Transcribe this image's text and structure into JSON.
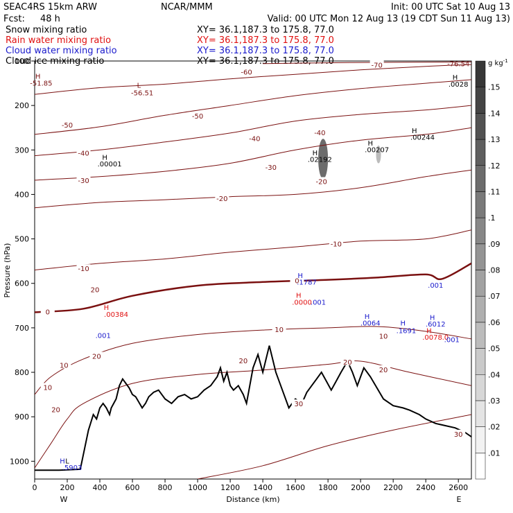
{
  "header": {
    "model": "SEAC4RS 15km ARW",
    "org": "NCAR/MMM",
    "init": "Init: 00 UTC Sat 10 Aug 13",
    "fcst_label": "Fcst:",
    "fcst_value": "48 h",
    "valid": "Valid: 00 UTC Mon 12 Aug 13 (19 CDT Sun 11 Aug 13)",
    "fields": [
      {
        "name": "Snow mixing ratio",
        "color": "#000000",
        "xy": "XY=  36.1,187.3 to 175.8, 77.0"
      },
      {
        "name": "Rain water mixing ratio",
        "color": "#e01010",
        "xy": "XY=  36.1,187.3 to 175.8, 77.0"
      },
      {
        "name": "Cloud water mixing ratio",
        "color": "#1a1acc",
        "xy": "XY=  36.1,187.3 to 175.8, 77.0"
      },
      {
        "name": "Cloud ice mixing ratio",
        "color": "#000000",
        "xy": "XY=  36.1,187.3 to 175.8, 77.0"
      }
    ]
  },
  "chart_data": {
    "type": "contour-cross-section",
    "xlabel": "Distance (km)",
    "ylabel": "Pressure (hPa)",
    "xlim": [
      0,
      2680
    ],
    "ylim": [
      1040,
      100
    ],
    "x_ticks": [
      0,
      200,
      400,
      600,
      800,
      1000,
      1200,
      1400,
      1600,
      1800,
      2000,
      2200,
      2400,
      2600
    ],
    "y_ticks": [
      100,
      200,
      300,
      400,
      500,
      600,
      700,
      800,
      900,
      1000
    ],
    "left_end_label": "W",
    "right_end_label": "E",
    "colors": {
      "temperature": "#7a1010",
      "zero_isotherm": "#7a1010",
      "terrain": "#000000",
      "cloud_water": "#1a1acc",
      "rain_water": "#e01010"
    },
    "temperature_isotherms_C": [
      {
        "value": 30,
        "points": [
          [
            1000,
            1040
          ],
          [
            1400,
            1010
          ],
          [
            1800,
            965
          ],
          [
            2200,
            930
          ],
          [
            2680,
            895
          ]
        ]
      },
      {
        "value": 20,
        "points": [
          [
            0,
            1015
          ],
          [
            100,
            960
          ],
          [
            200,
            905
          ],
          [
            300,
            870
          ],
          [
            600,
            825
          ],
          [
            1000,
            805
          ],
          [
            1400,
            795
          ],
          [
            1800,
            782
          ],
          [
            2000,
            775
          ],
          [
            2300,
            800
          ],
          [
            2680,
            830
          ]
        ]
      },
      {
        "value": 10,
        "points": [
          [
            0,
            850
          ],
          [
            100,
            810
          ],
          [
            300,
            770
          ],
          [
            600,
            735
          ],
          [
            1000,
            715
          ],
          [
            1400,
            705
          ],
          [
            1800,
            700
          ],
          [
            2100,
            697
          ],
          [
            2400,
            708
          ],
          [
            2680,
            725
          ]
        ]
      },
      {
        "value": 0,
        "points": [
          [
            0,
            665
          ],
          [
            300,
            657
          ],
          [
            600,
            628
          ],
          [
            1000,
            605
          ],
          [
            1400,
            597
          ],
          [
            1800,
            592
          ],
          [
            2100,
            587
          ],
          [
            2400,
            580
          ],
          [
            2500,
            590
          ],
          [
            2680,
            555
          ]
        ]
      },
      {
        "value": -10,
        "points": [
          [
            0,
            570
          ],
          [
            400,
            555
          ],
          [
            800,
            545
          ],
          [
            1200,
            530
          ],
          [
            1600,
            518
          ],
          [
            2000,
            505
          ],
          [
            2400,
            500
          ],
          [
            2680,
            480
          ]
        ]
      },
      {
        "value": -20,
        "points": [
          [
            0,
            430
          ],
          [
            400,
            418
          ],
          [
            800,
            412
          ],
          [
            1200,
            405
          ],
          [
            1600,
            400
          ],
          [
            2000,
            385
          ],
          [
            2400,
            360
          ],
          [
            2680,
            345
          ]
        ]
      },
      {
        "value": -30,
        "points": [
          [
            0,
            368
          ],
          [
            400,
            360
          ],
          [
            800,
            348
          ],
          [
            1200,
            330
          ],
          [
            1600,
            300
          ],
          [
            2000,
            278
          ],
          [
            2400,
            265
          ],
          [
            2680,
            250
          ]
        ]
      },
      {
        "value": -40,
        "points": [
          [
            0,
            313
          ],
          [
            400,
            300
          ],
          [
            800,
            282
          ],
          [
            1200,
            262
          ],
          [
            1600,
            235
          ],
          [
            2000,
            220
          ],
          [
            2400,
            210
          ],
          [
            2680,
            200
          ]
        ]
      },
      {
        "value": -50,
        "points": [
          [
            0,
            265
          ],
          [
            400,
            248
          ],
          [
            800,
            222
          ],
          [
            1200,
            200
          ],
          [
            1600,
            178
          ],
          [
            2000,
            162
          ],
          [
            2400,
            150
          ],
          [
            2680,
            142
          ]
        ]
      },
      {
        "value": -60,
        "points": [
          [
            0,
            175
          ],
          [
            400,
            160
          ],
          [
            800,
            152
          ],
          [
            1200,
            140
          ],
          [
            1600,
            130
          ],
          [
            2000,
            120
          ],
          [
            2400,
            112
          ],
          [
            2680,
            108
          ]
        ]
      },
      {
        "value": -70,
        "points": [
          [
            1400,
            106
          ],
          [
            1800,
            104
          ],
          [
            2200,
            103
          ],
          [
            2680,
            102
          ]
        ]
      }
    ],
    "contour_labels": [
      {
        "text": "-70",
        "x": 2100,
        "y": 110
      },
      {
        "text": "-60",
        "x": 1300,
        "y": 126
      },
      {
        "text": "-50",
        "x": 200,
        "y": 245
      },
      {
        "text": "-50",
        "x": 1000,
        "y": 225
      },
      {
        "text": "-40",
        "x": 300,
        "y": 308
      },
      {
        "text": "-40",
        "x": 1350,
        "y": 275
      },
      {
        "text": "-40",
        "x": 1750,
        "y": 262
      },
      {
        "text": "-30",
        "x": 300,
        "y": 370
      },
      {
        "text": "-30",
        "x": 1450,
        "y": 340
      },
      {
        "text": "-20",
        "x": 1150,
        "y": 410
      },
      {
        "text": "-20",
        "x": 1760,
        "y": 372
      },
      {
        "text": "-10",
        "x": 300,
        "y": 568
      },
      {
        "text": "-10",
        "x": 1850,
        "y": 512
      },
      {
        "text": "0",
        "x": 80,
        "y": 665
      },
      {
        "text": "0",
        "x": 1610,
        "y": 595
      },
      {
        "text": "10",
        "x": 180,
        "y": 785
      },
      {
        "text": "10",
        "x": 80,
        "y": 835
      },
      {
        "text": "10",
        "x": 1500,
        "y": 705
      },
      {
        "text": "10",
        "x": 2140,
        "y": 720
      },
      {
        "text": "20",
        "x": 380,
        "y": 765
      },
      {
        "text": "20",
        "x": 1280,
        "y": 775
      },
      {
        "text": "20",
        "x": 1920,
        "y": 778
      },
      {
        "text": "20",
        "x": 2140,
        "y": 795
      },
      {
        "text": "20",
        "x": 370,
        "y": 615
      },
      {
        "text": "20",
        "x": 130,
        "y": 885
      },
      {
        "text": "30",
        "x": 1620,
        "y": 872
      },
      {
        "text": "30",
        "x": 2600,
        "y": 940
      }
    ],
    "extrema": [
      {
        "text": "H",
        "x": 20,
        "y": 140,
        "color": "#7a1010"
      },
      {
        "text": "-51.85",
        "x": 40,
        "y": 155,
        "color": "#7a1010"
      },
      {
        "text": "L",
        "x": 640,
        "y": 160,
        "color": "#7a1010"
      },
      {
        "text": "-56.51",
        "x": 660,
        "y": 177,
        "color": "#7a1010"
      },
      {
        "text": "-76.54",
        "x": 2600,
        "y": 112,
        "color": "#7a1010"
      },
      {
        "text": "H",
        "x": 2580,
        "y": 142,
        "color": "#000000"
      },
      {
        "text": ".0028",
        "x": 2600,
        "y": 158,
        "color": "#000000"
      },
      {
        "text": "H",
        "x": 2330,
        "y": 262,
        "color": "#000000"
      },
      {
        "text": ".00244",
        "x": 2380,
        "y": 277,
        "color": "#000000"
      },
      {
        "text": "H",
        "x": 2060,
        "y": 290,
        "color": "#000000"
      },
      {
        "text": ".00207",
        "x": 2100,
        "y": 305,
        "color": "#000000"
      },
      {
        "text": "H",
        "x": 1720,
        "y": 312,
        "color": "#000000"
      },
      {
        "text": ".02192",
        "x": 1750,
        "y": 327,
        "color": "#000000"
      },
      {
        "text": "H",
        "x": 430,
        "y": 322,
        "color": "#000000"
      },
      {
        "text": ".00001",
        "x": 460,
        "y": 337,
        "color": "#000000"
      },
      {
        "text": "H",
        "x": 1630,
        "y": 588,
        "color": "#1a1acc"
      },
      {
        "text": ".1787",
        "x": 1670,
        "y": 603,
        "color": "#1a1acc"
      },
      {
        "text": "H",
        "x": 1620,
        "y": 632,
        "color": "#e01010"
      },
      {
        "text": ".0000",
        "x": 1640,
        "y": 648,
        "color": "#e01010"
      },
      {
        "text": ".001",
        "x": 1740,
        "y": 648,
        "color": "#1a1acc"
      },
      {
        "text": "H",
        "x": 440,
        "y": 660,
        "color": "#e01010"
      },
      {
        "text": ".00384",
        "x": 500,
        "y": 675,
        "color": "#e01010"
      },
      {
        "text": ".001",
        "x": 420,
        "y": 723,
        "color": "#1a1acc"
      },
      {
        "text": "H",
        "x": 2040,
        "y": 680,
        "color": "#1a1acc"
      },
      {
        "text": ".0064",
        "x": 2060,
        "y": 695,
        "color": "#1a1acc"
      },
      {
        "text": "H",
        "x": 2260,
        "y": 695,
        "color": "#1a1acc"
      },
      {
        "text": ".1691",
        "x": 2280,
        "y": 712,
        "color": "#1a1acc"
      },
      {
        "text": ".001",
        "x": 2460,
        "y": 610,
        "color": "#1a1acc"
      },
      {
        "text": "H",
        "x": 2440,
        "y": 682,
        "color": "#1a1acc"
      },
      {
        "text": ".6012",
        "x": 2460,
        "y": 697,
        "color": "#1a1acc"
      },
      {
        "text": "H",
        "x": 2420,
        "y": 712,
        "color": "#e01010"
      },
      {
        "text": ".0078",
        "x": 2440,
        "y": 727,
        "color": "#e01010"
      },
      {
        "text": ".0",
        "x": 2520,
        "y": 727,
        "color": "#e01010"
      },
      {
        "text": ".001",
        "x": 2560,
        "y": 732,
        "color": "#1a1acc"
      },
      {
        "text": "H",
        "x": 170,
        "y": 1005,
        "color": "#1a1acc"
      },
      {
        "text": "L",
        "x": 200,
        "y": 1005,
        "color": "#000000"
      },
      {
        "text": ".5903",
        "x": 230,
        "y": 1020,
        "color": "#1a1acc"
      }
    ],
    "terrain_surface": [
      [
        0,
        1020
      ],
      [
        150,
        1020
      ],
      [
        280,
        1018
      ],
      [
        330,
        930
      ],
      [
        360,
        895
      ],
      [
        380,
        905
      ],
      [
        400,
        880
      ],
      [
        420,
        870
      ],
      [
        440,
        880
      ],
      [
        460,
        895
      ],
      [
        470,
        880
      ],
      [
        500,
        860
      ],
      [
        520,
        830
      ],
      [
        540,
        815
      ],
      [
        560,
        825
      ],
      [
        580,
        835
      ],
      [
        600,
        850
      ],
      [
        620,
        855
      ],
      [
        660,
        880
      ],
      [
        680,
        870
      ],
      [
        700,
        855
      ],
      [
        730,
        845
      ],
      [
        760,
        840
      ],
      [
        800,
        860
      ],
      [
        840,
        870
      ],
      [
        880,
        855
      ],
      [
        920,
        850
      ],
      [
        960,
        860
      ],
      [
        1000,
        855
      ],
      [
        1040,
        840
      ],
      [
        1080,
        830
      ],
      [
        1120,
        810
      ],
      [
        1140,
        790
      ],
      [
        1160,
        820
      ],
      [
        1180,
        800
      ],
      [
        1200,
        830
      ],
      [
        1220,
        840
      ],
      [
        1250,
        830
      ],
      [
        1280,
        850
      ],
      [
        1300,
        870
      ],
      [
        1320,
        830
      ],
      [
        1340,
        790
      ],
      [
        1370,
        760
      ],
      [
        1400,
        800
      ],
      [
        1420,
        770
      ],
      [
        1440,
        740
      ],
      [
        1460,
        770
      ],
      [
        1480,
        800
      ],
      [
        1520,
        840
      ],
      [
        1560,
        880
      ],
      [
        1600,
        860
      ],
      [
        1640,
        870
      ],
      [
        1670,
        845
      ],
      [
        1700,
        830
      ],
      [
        1730,
        815
      ],
      [
        1760,
        800
      ],
      [
        1790,
        820
      ],
      [
        1820,
        840
      ],
      [
        1850,
        820
      ],
      [
        1880,
        800
      ],
      [
        1920,
        775
      ],
      [
        1950,
        800
      ],
      [
        1980,
        830
      ],
      [
        2000,
        810
      ],
      [
        2020,
        790
      ],
      [
        2060,
        810
      ],
      [
        2100,
        835
      ],
      [
        2140,
        860
      ],
      [
        2200,
        875
      ],
      [
        2260,
        880
      ],
      [
        2300,
        885
      ],
      [
        2360,
        895
      ],
      [
        2400,
        905
      ],
      [
        2460,
        915
      ],
      [
        2520,
        920
      ],
      [
        2580,
        925
      ],
      [
        2640,
        935
      ],
      [
        2680,
        945
      ]
    ],
    "shading_legend": {
      "unit_label": "g kg",
      "unit_exp": "-1",
      "levels": [
        ".01",
        ".02",
        ".03",
        ".04",
        ".05",
        ".06",
        ".07",
        ".08",
        ".09",
        ".1",
        ".11",
        ".12",
        ".13",
        ".14",
        ".15"
      ]
    },
    "shaded_areas": [
      {
        "x": 1770,
        "y": 320,
        "rx_km": 30,
        "ry_hpa": 45,
        "level": 0.13
      },
      {
        "x": 2110,
        "y": 310,
        "rx_km": 15,
        "ry_hpa": 20,
        "level": 0.06
      }
    ]
  }
}
